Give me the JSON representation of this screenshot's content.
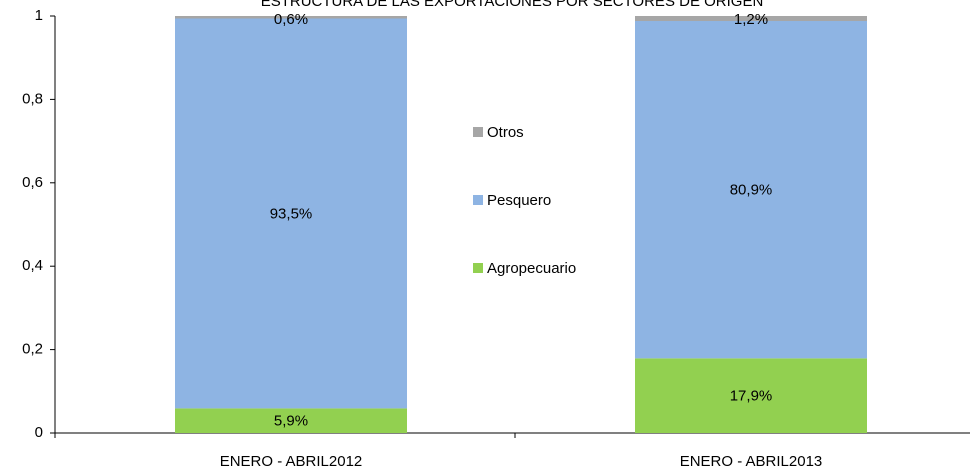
{
  "chart_data": {
    "type": "stacked_bar",
    "title": "ESTRUCTURA DE LAS EXPORTACIONES POR SECTORES DE ORIGEN",
    "categories": [
      "ENERO - ABRIL2012",
      "ENERO - ABRIL2013"
    ],
    "series": [
      {
        "name": "Agropecuario",
        "color": "#92d050",
        "values": [
          0.059,
          0.179
        ],
        "value_labels": [
          "5,9%",
          "17,9%"
        ]
      },
      {
        "name": "Pesquero",
        "color": "#8eb4e3",
        "values": [
          0.935,
          0.809
        ],
        "value_labels": [
          "93,5%",
          "80,9%"
        ]
      },
      {
        "name": "Otros",
        "color": "#a6a6a6",
        "values": [
          0.006,
          0.012
        ],
        "value_labels": [
          "0,6%",
          "1,2%"
        ]
      }
    ],
    "ylim": [
      0,
      1
    ],
    "yticks": [
      0,
      {
        "value": 0.2,
        "label": "0,2"
      },
      {
        "value": 0.4,
        "label": "0,4"
      },
      {
        "value": 0.6,
        "label": "0,6"
      },
      {
        "value": 0.8,
        "label": "0,8"
      },
      1
    ],
    "legend": "center"
  }
}
